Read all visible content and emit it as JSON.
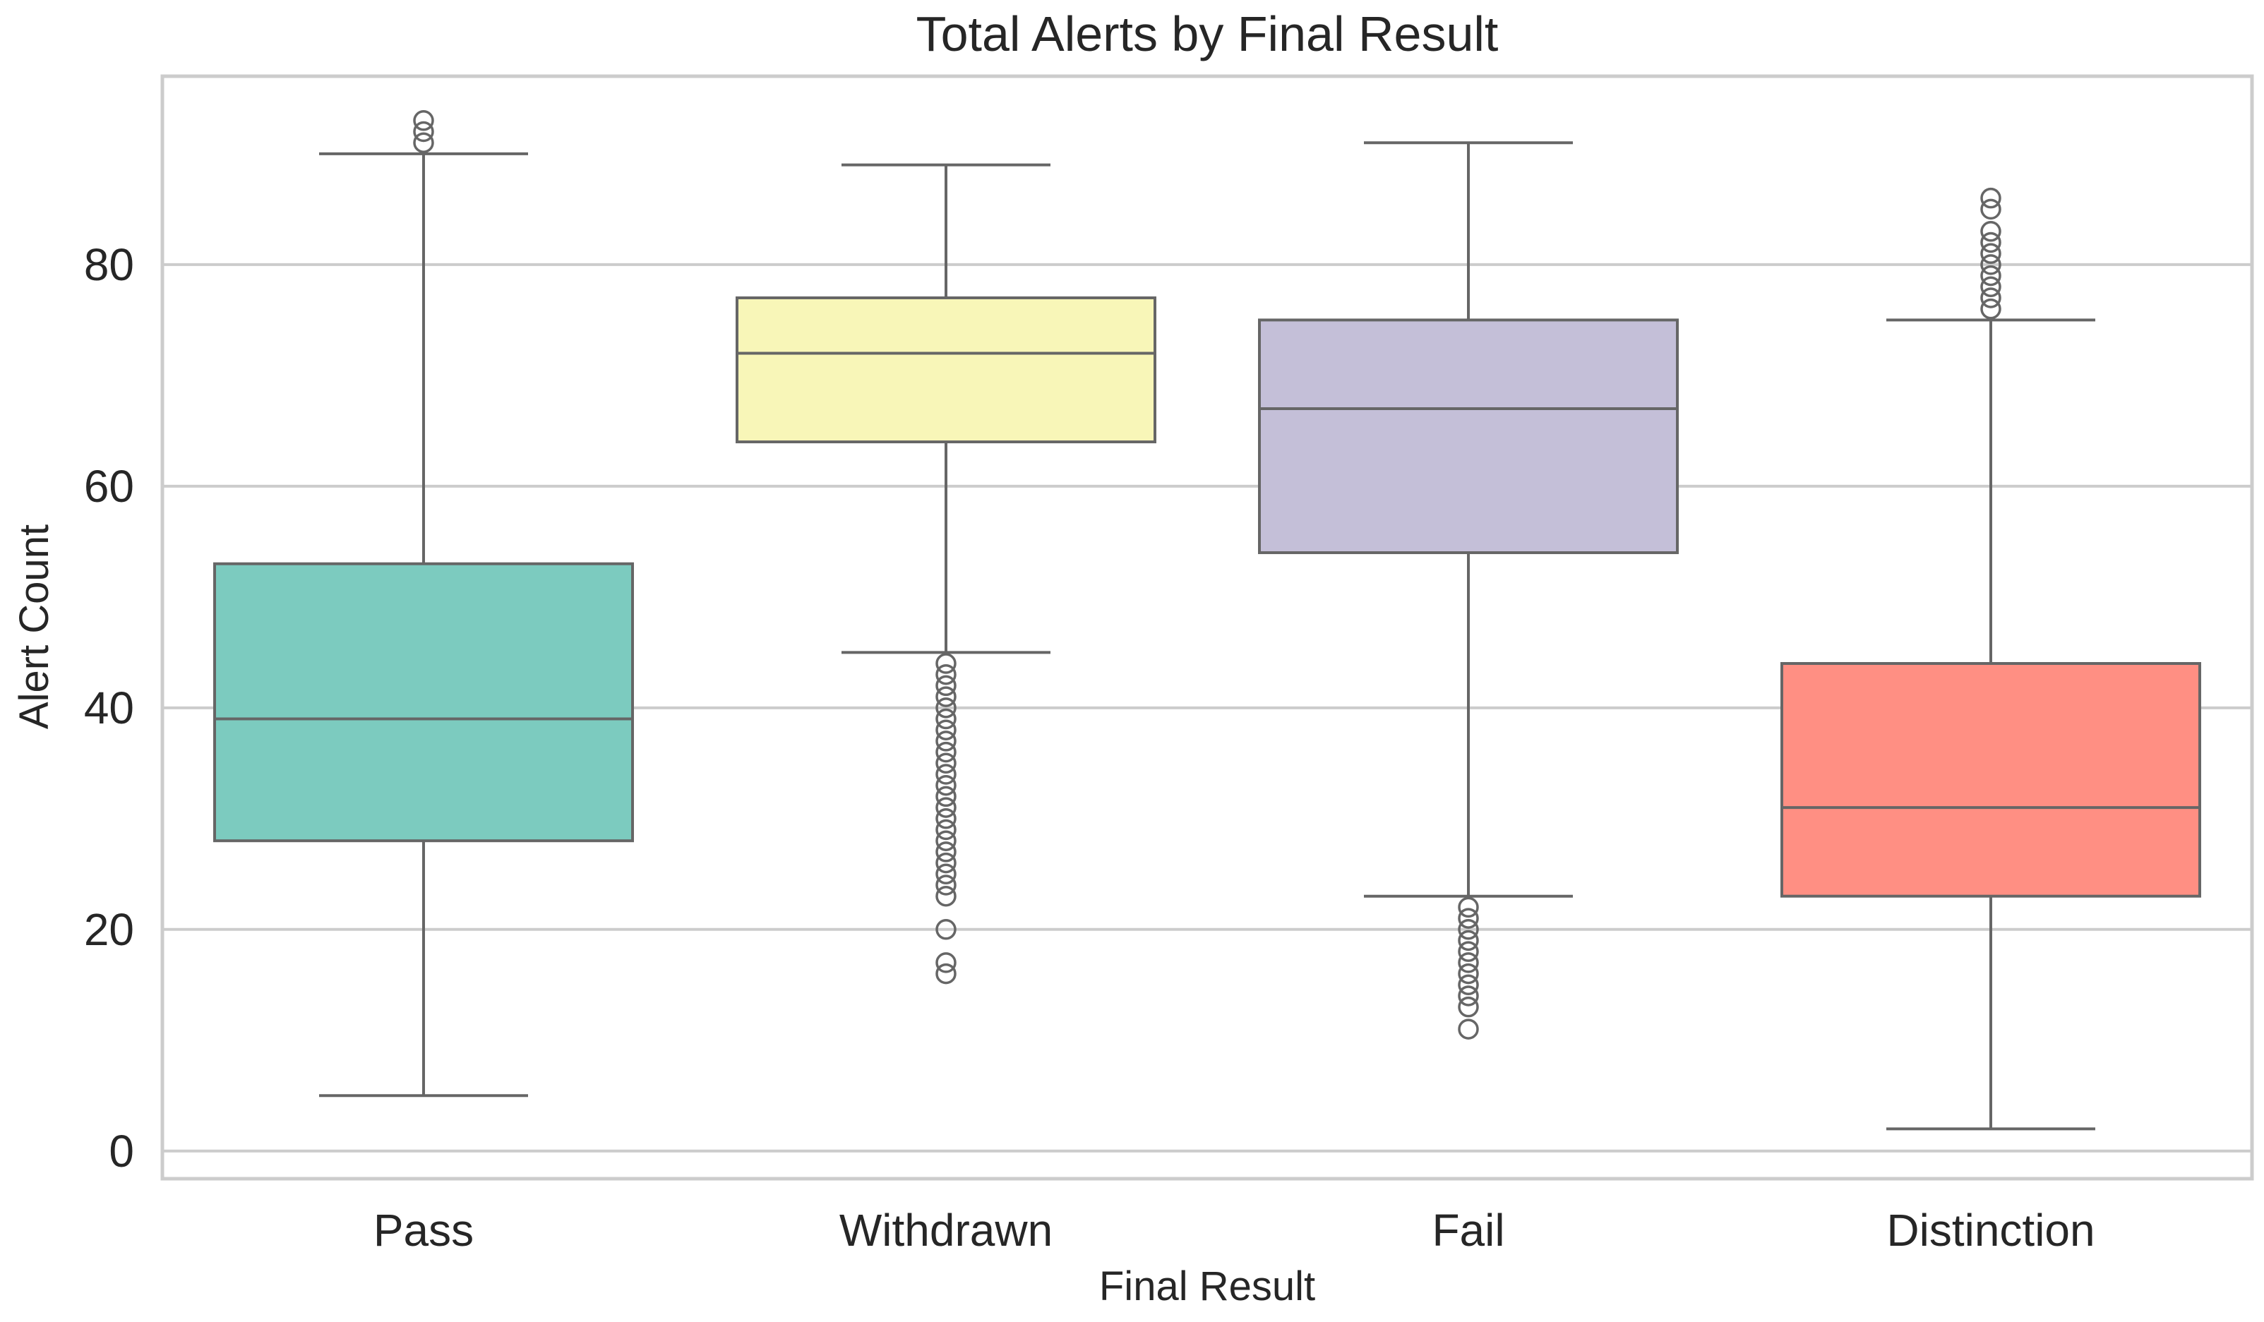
{
  "chart_data": {
    "type": "box",
    "title": "Total Alerts by Final Result",
    "xlabel": "Final Result",
    "ylabel": "Alert Count",
    "ylim": [
      -2.5,
      97
    ],
    "yticks": [
      0,
      20,
      40,
      60,
      80
    ],
    "grid": true,
    "categories": [
      "Pass",
      "Withdrawn",
      "Fail",
      "Distinction"
    ],
    "colors": [
      "#7ccbbf",
      "#f8f6b8",
      "#c4bfd8",
      "#ff8f83"
    ],
    "line_color": "#666666",
    "grid_color": "#cccccc",
    "boxes": [
      {
        "category": "Pass",
        "whisker_low": 5,
        "q1": 28,
        "median": 39,
        "q3": 53,
        "whisker_high": 90,
        "outliers": [
          91,
          92,
          93
        ]
      },
      {
        "category": "Withdrawn",
        "whisker_low": 45,
        "q1": 64,
        "median": 72,
        "q3": 77,
        "whisker_high": 89,
        "outliers": [
          16,
          17,
          20,
          23,
          24,
          25,
          26,
          27,
          28,
          29,
          30,
          31,
          32,
          33,
          34,
          35,
          36,
          37,
          38,
          39,
          40,
          41,
          42,
          43,
          44
        ]
      },
      {
        "category": "Fail",
        "whisker_low": 23,
        "q1": 54,
        "median": 67,
        "q3": 75,
        "whisker_high": 91,
        "outliers": [
          11,
          13,
          14,
          15,
          16,
          17,
          18,
          19,
          20,
          21,
          22
        ]
      },
      {
        "category": "Distinction",
        "whisker_low": 2,
        "q1": 23,
        "median": 31,
        "q3": 44,
        "whisker_high": 75,
        "outliers": [
          76,
          77,
          78,
          79,
          80,
          81,
          82,
          83,
          85,
          86
        ]
      }
    ]
  }
}
